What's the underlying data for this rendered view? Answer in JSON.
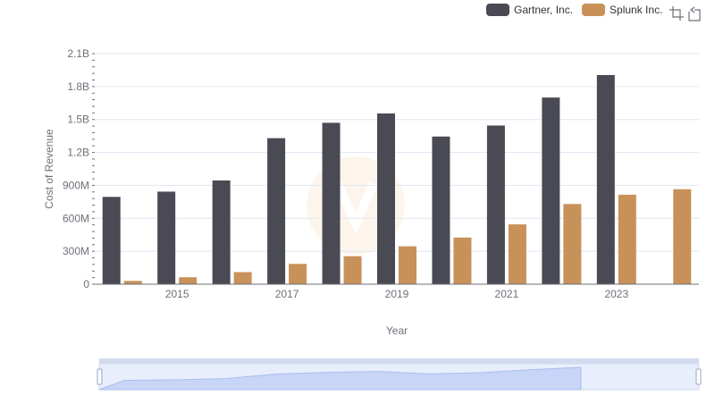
{
  "chart_data": {
    "type": "bar",
    "title": "",
    "xlabel": "Year",
    "ylabel": "Cost of Revenue",
    "categories": [
      "2014",
      "2015",
      "2016",
      "2017",
      "2018",
      "2019",
      "2020",
      "2021",
      "2022",
      "2023",
      "2024"
    ],
    "x_tick_labels": [
      "2015",
      "2017",
      "2019",
      "2021",
      "2023"
    ],
    "y_tick_labels": [
      "0",
      "300M",
      "600M",
      "900M",
      "1.2B",
      "1.5B",
      "1.8B",
      "2.1B"
    ],
    "ylim": [
      0,
      2100000000
    ],
    "grid": true,
    "legend_position": "top-right",
    "series": [
      {
        "name": "Gartner, Inc.",
        "color": "#4a4a55",
        "values": [
          795000000,
          843000000,
          945000000,
          1330000000,
          1470000000,
          1555000000,
          1345000000,
          1445000000,
          1700000000,
          1905000000,
          null
        ]
      },
      {
        "name": "Splunk Inc.",
        "color": "#c8915a",
        "values": [
          30000000,
          63000000,
          110000000,
          185000000,
          255000000,
          345000000,
          425000000,
          545000000,
          730000000,
          815000000,
          865000000
        ]
      }
    ]
  },
  "legend": {
    "items": [
      {
        "label": "Gartner, Inc.",
        "color": "#4a4a55"
      },
      {
        "label": "Splunk Inc.",
        "color": "#c8915a"
      }
    ]
  },
  "toolbar": {
    "zoom_icon": "zoom-select-icon",
    "reset_icon": "zoom-reset-icon"
  },
  "data_zoom": {
    "range_start_percent": 0,
    "range_end_percent": 100
  }
}
